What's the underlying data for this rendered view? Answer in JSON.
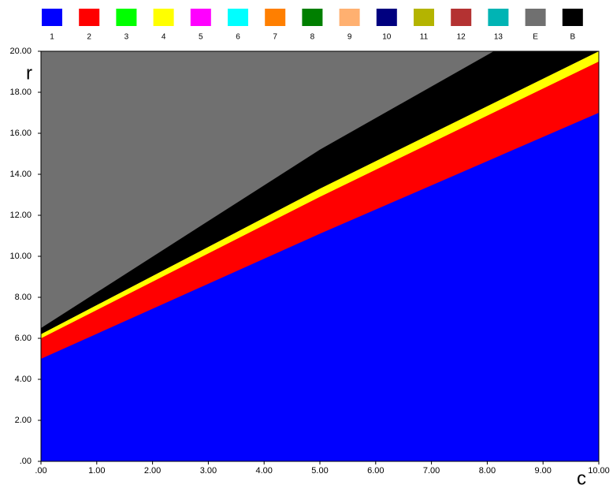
{
  "chart_data": {
    "type": "region",
    "x_label": "c",
    "y_label": "r",
    "x": [
      0,
      5,
      10
    ],
    "series": [
      {
        "name": "1",
        "color": "#0000ff",
        "values": [
          5,
          11.1,
          17
        ]
      },
      {
        "name": "2",
        "color": "#ff0000",
        "values": [
          6,
          12.9,
          19.5
        ]
      },
      {
        "name": "3",
        "color": "#00ff00"
      },
      {
        "name": "4",
        "color": "#ffff00",
        "values": [
          6.2,
          13.3,
          20
        ]
      },
      {
        "name": "5",
        "color": "#ff00ff"
      },
      {
        "name": "6",
        "color": "#00ffff"
      },
      {
        "name": "7",
        "color": "#ff7f00"
      },
      {
        "name": "8",
        "color": "#007f00"
      },
      {
        "name": "9",
        "color": "#ffb070"
      },
      {
        "name": "10",
        "color": "#00007f"
      },
      {
        "name": "11",
        "color": "#b4b400"
      },
      {
        "name": "12",
        "color": "#b43232"
      },
      {
        "name": "13",
        "color": "#00b4b4"
      },
      {
        "name": "E",
        "color": "#707070",
        "values": [
          20,
          20,
          20
        ]
      },
      {
        "name": "B",
        "color": "#000000",
        "values": [
          6.5,
          15.2,
          22.9
        ]
      }
    ],
    "xlim": [
      0,
      10
    ],
    "ylim": [
      0,
      20
    ],
    "xticks": [
      {
        "value": 0,
        "label": ".00"
      },
      {
        "value": 1,
        "label": "1.00"
      },
      {
        "value": 2,
        "label": "2.00"
      },
      {
        "value": 3,
        "label": "3.00"
      },
      {
        "value": 4,
        "label": "4.00"
      },
      {
        "value": 5,
        "label": "5.00"
      },
      {
        "value": 6,
        "label": "6.00"
      },
      {
        "value": 7,
        "label": "7.00"
      },
      {
        "value": 8,
        "label": "8.00"
      },
      {
        "value": 9,
        "label": "9.00"
      },
      {
        "value": 10,
        "label": "10.00"
      }
    ],
    "yticks": [
      {
        "value": 0,
        "label": ".00"
      },
      {
        "value": 2,
        "label": "2.00"
      },
      {
        "value": 4,
        "label": "4.00"
      },
      {
        "value": 6,
        "label": "6.00"
      },
      {
        "value": 8,
        "label": "8.00"
      },
      {
        "value": 10,
        "label": "10.00"
      },
      {
        "value": 12,
        "label": "12.00"
      },
      {
        "value": 14,
        "label": "14.00"
      },
      {
        "value": 16,
        "label": "16.00"
      },
      {
        "value": 18,
        "label": "18.00"
      },
      {
        "value": 20,
        "label": "20.00"
      }
    ]
  }
}
